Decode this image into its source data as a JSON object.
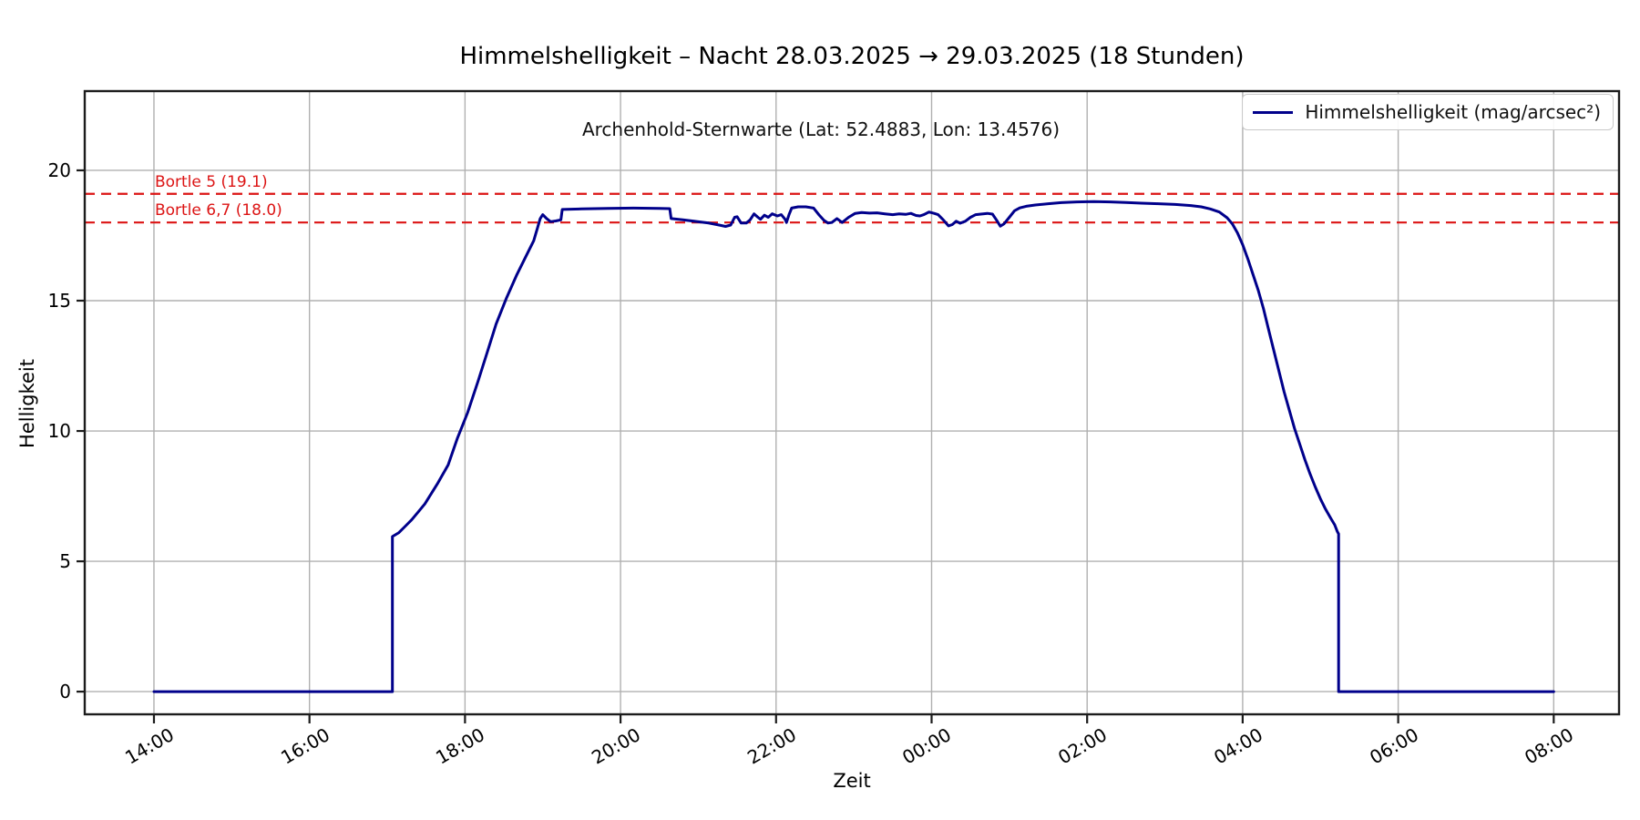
{
  "figure": {
    "title": "Himmelshelligkeit – Nacht 28.03.2025 → 29.03.2025 (18 Stunden)",
    "subtitle": "Archenhold-Sternwarte (Lat: 52.4883, Lon: 13.4576)",
    "xlabel": "Zeit",
    "ylabel": "Helligkeit"
  },
  "legend": {
    "position": "upper right",
    "label": "Himmelshelligkeit (mag/arcsec²)"
  },
  "colors": {
    "series": "#00008b",
    "reference": "#dc1414",
    "grid": "#b0b0b0",
    "spine": "#1c1c1c"
  },
  "chart_data": {
    "type": "line",
    "title": "Himmelshelligkeit – Nacht 28.03.2025 → 29.03.2025 (18 Stunden)",
    "subtitle": "Archenhold-Sternwarte (Lat: 52.4883, Lon: 13.4576)",
    "xlabel": "Zeit",
    "ylabel": "Helligkeit",
    "grid": true,
    "x_unit": "minutes after 14:00 on 28.03.2025",
    "xlim_minutes": [
      -53.4,
      1130.4
    ],
    "ylim": [
      -0.87,
      23.04
    ],
    "x_ticks": [
      {
        "minutes": 0,
        "label": "14:00"
      },
      {
        "minutes": 120,
        "label": "16:00"
      },
      {
        "minutes": 240,
        "label": "18:00"
      },
      {
        "minutes": 360,
        "label": "20:00"
      },
      {
        "minutes": 480,
        "label": "22:00"
      },
      {
        "minutes": 600,
        "label": "00:00"
      },
      {
        "minutes": 720,
        "label": "02:00"
      },
      {
        "minutes": 840,
        "label": "04:00"
      },
      {
        "minutes": 960,
        "label": "06:00"
      },
      {
        "minutes": 1080,
        "label": "08:00"
      }
    ],
    "y_ticks": [
      0,
      5,
      10,
      15,
      20
    ],
    "reference_lines": [
      {
        "label": "Bortle 5 (19.1)",
        "value": 19.1,
        "color": "#dc1414",
        "style": "dashed"
      },
      {
        "label": "Bortle 6,7 (18.0)",
        "value": 18.0,
        "color": "#dc1414",
        "style": "dashed"
      }
    ],
    "series": [
      {
        "name": "Himmelshelligkeit (mag/arcsec²)",
        "color": "#00008b",
        "points": [
          [
            0,
            0
          ],
          [
            30,
            0
          ],
          [
            60,
            0
          ],
          [
            90,
            0
          ],
          [
            120,
            0
          ],
          [
            150,
            0
          ],
          [
            180,
            0
          ],
          [
            184,
            0
          ],
          [
            184,
            5.95
          ],
          [
            189,
            6.1
          ],
          [
            194,
            6.35
          ],
          [
            199,
            6.6
          ],
          [
            204,
            6.9
          ],
          [
            209,
            7.2
          ],
          [
            214,
            7.6
          ],
          [
            219,
            8.0
          ],
          [
            227,
            8.7
          ],
          [
            234,
            9.7
          ],
          [
            242,
            10.7
          ],
          [
            250,
            11.9
          ],
          [
            257,
            13.0
          ],
          [
            264,
            14.1
          ],
          [
            272,
            15.1
          ],
          [
            280,
            16.0
          ],
          [
            287,
            16.7
          ],
          [
            293,
            17.3
          ],
          [
            296,
            17.8
          ],
          [
            298,
            18.15
          ],
          [
            300,
            18.3
          ],
          [
            303,
            18.15
          ],
          [
            306,
            18.03
          ],
          [
            310,
            18.06
          ],
          [
            314,
            18.1
          ],
          [
            315,
            18.5
          ],
          [
            330,
            18.52
          ],
          [
            350,
            18.54
          ],
          [
            370,
            18.55
          ],
          [
            390,
            18.54
          ],
          [
            398,
            18.53
          ],
          [
            399,
            18.15
          ],
          [
            408,
            18.1
          ],
          [
            418,
            18.04
          ],
          [
            428,
            17.98
          ],
          [
            436,
            17.9
          ],
          [
            441,
            17.85
          ],
          [
            445,
            17.9
          ],
          [
            448,
            18.2
          ],
          [
            450,
            18.22
          ],
          [
            453,
            17.98
          ],
          [
            457,
            17.98
          ],
          [
            460,
            18.1
          ],
          [
            463,
            18.33
          ],
          [
            466,
            18.2
          ],
          [
            468,
            18.12
          ],
          [
            471,
            18.28
          ],
          [
            474,
            18.2
          ],
          [
            477,
            18.33
          ],
          [
            481,
            18.25
          ],
          [
            484,
            18.3
          ],
          [
            487,
            18.12
          ],
          [
            488,
            18.0
          ],
          [
            490,
            18.3
          ],
          [
            492,
            18.55
          ],
          [
            497,
            18.6
          ],
          [
            503,
            18.6
          ],
          [
            509,
            18.55
          ],
          [
            513,
            18.3
          ],
          [
            517,
            18.08
          ],
          [
            520,
            17.98
          ],
          [
            523,
            18.0
          ],
          [
            527,
            18.15
          ],
          [
            531,
            18.0
          ],
          [
            536,
            18.2
          ],
          [
            541,
            18.35
          ],
          [
            546,
            18.38
          ],
          [
            552,
            18.36
          ],
          [
            558,
            18.37
          ],
          [
            564,
            18.33
          ],
          [
            570,
            18.3
          ],
          [
            575,
            18.33
          ],
          [
            580,
            18.31
          ],
          [
            584,
            18.35
          ],
          [
            588,
            18.27
          ],
          [
            591,
            18.25
          ],
          [
            594,
            18.3
          ],
          [
            598,
            18.4
          ],
          [
            602,
            18.35
          ],
          [
            605,
            18.3
          ],
          [
            609,
            18.1
          ],
          [
            613,
            17.87
          ],
          [
            616,
            17.92
          ],
          [
            619,
            18.05
          ],
          [
            622,
            17.97
          ],
          [
            626,
            18.05
          ],
          [
            630,
            18.2
          ],
          [
            634,
            18.3
          ],
          [
            638,
            18.32
          ],
          [
            643,
            18.35
          ],
          [
            647,
            18.32
          ],
          [
            650,
            18.1
          ],
          [
            653,
            17.86
          ],
          [
            656,
            17.95
          ],
          [
            660,
            18.2
          ],
          [
            664,
            18.45
          ],
          [
            668,
            18.56
          ],
          [
            673,
            18.62
          ],
          [
            680,
            18.67
          ],
          [
            690,
            18.72
          ],
          [
            700,
            18.76
          ],
          [
            712,
            18.79
          ],
          [
            725,
            18.8
          ],
          [
            738,
            18.79
          ],
          [
            750,
            18.77
          ],
          [
            762,
            18.74
          ],
          [
            775,
            18.72
          ],
          [
            788,
            18.69
          ],
          [
            800,
            18.65
          ],
          [
            808,
            18.6
          ],
          [
            815,
            18.52
          ],
          [
            822,
            18.4
          ],
          [
            828,
            18.18
          ],
          [
            832,
            17.95
          ],
          [
            836,
            17.6
          ],
          [
            840,
            17.15
          ],
          [
            844,
            16.6
          ],
          [
            848,
            16.0
          ],
          [
            852,
            15.4
          ],
          [
            856,
            14.7
          ],
          [
            860,
            13.9
          ],
          [
            864,
            13.1
          ],
          [
            868,
            12.3
          ],
          [
            872,
            11.5
          ],
          [
            876,
            10.8
          ],
          [
            880,
            10.1
          ],
          [
            884,
            9.5
          ],
          [
            888,
            8.9
          ],
          [
            892,
            8.35
          ],
          [
            896,
            7.85
          ],
          [
            900,
            7.4
          ],
          [
            904,
            7.0
          ],
          [
            908,
            6.65
          ],
          [
            911,
            6.4
          ],
          [
            913,
            6.15
          ],
          [
            914,
            6.05
          ],
          [
            914,
            0
          ],
          [
            930,
            0
          ],
          [
            960,
            0
          ],
          [
            990,
            0
          ],
          [
            1020,
            0
          ],
          [
            1050,
            0
          ],
          [
            1080,
            0
          ]
        ]
      }
    ]
  }
}
